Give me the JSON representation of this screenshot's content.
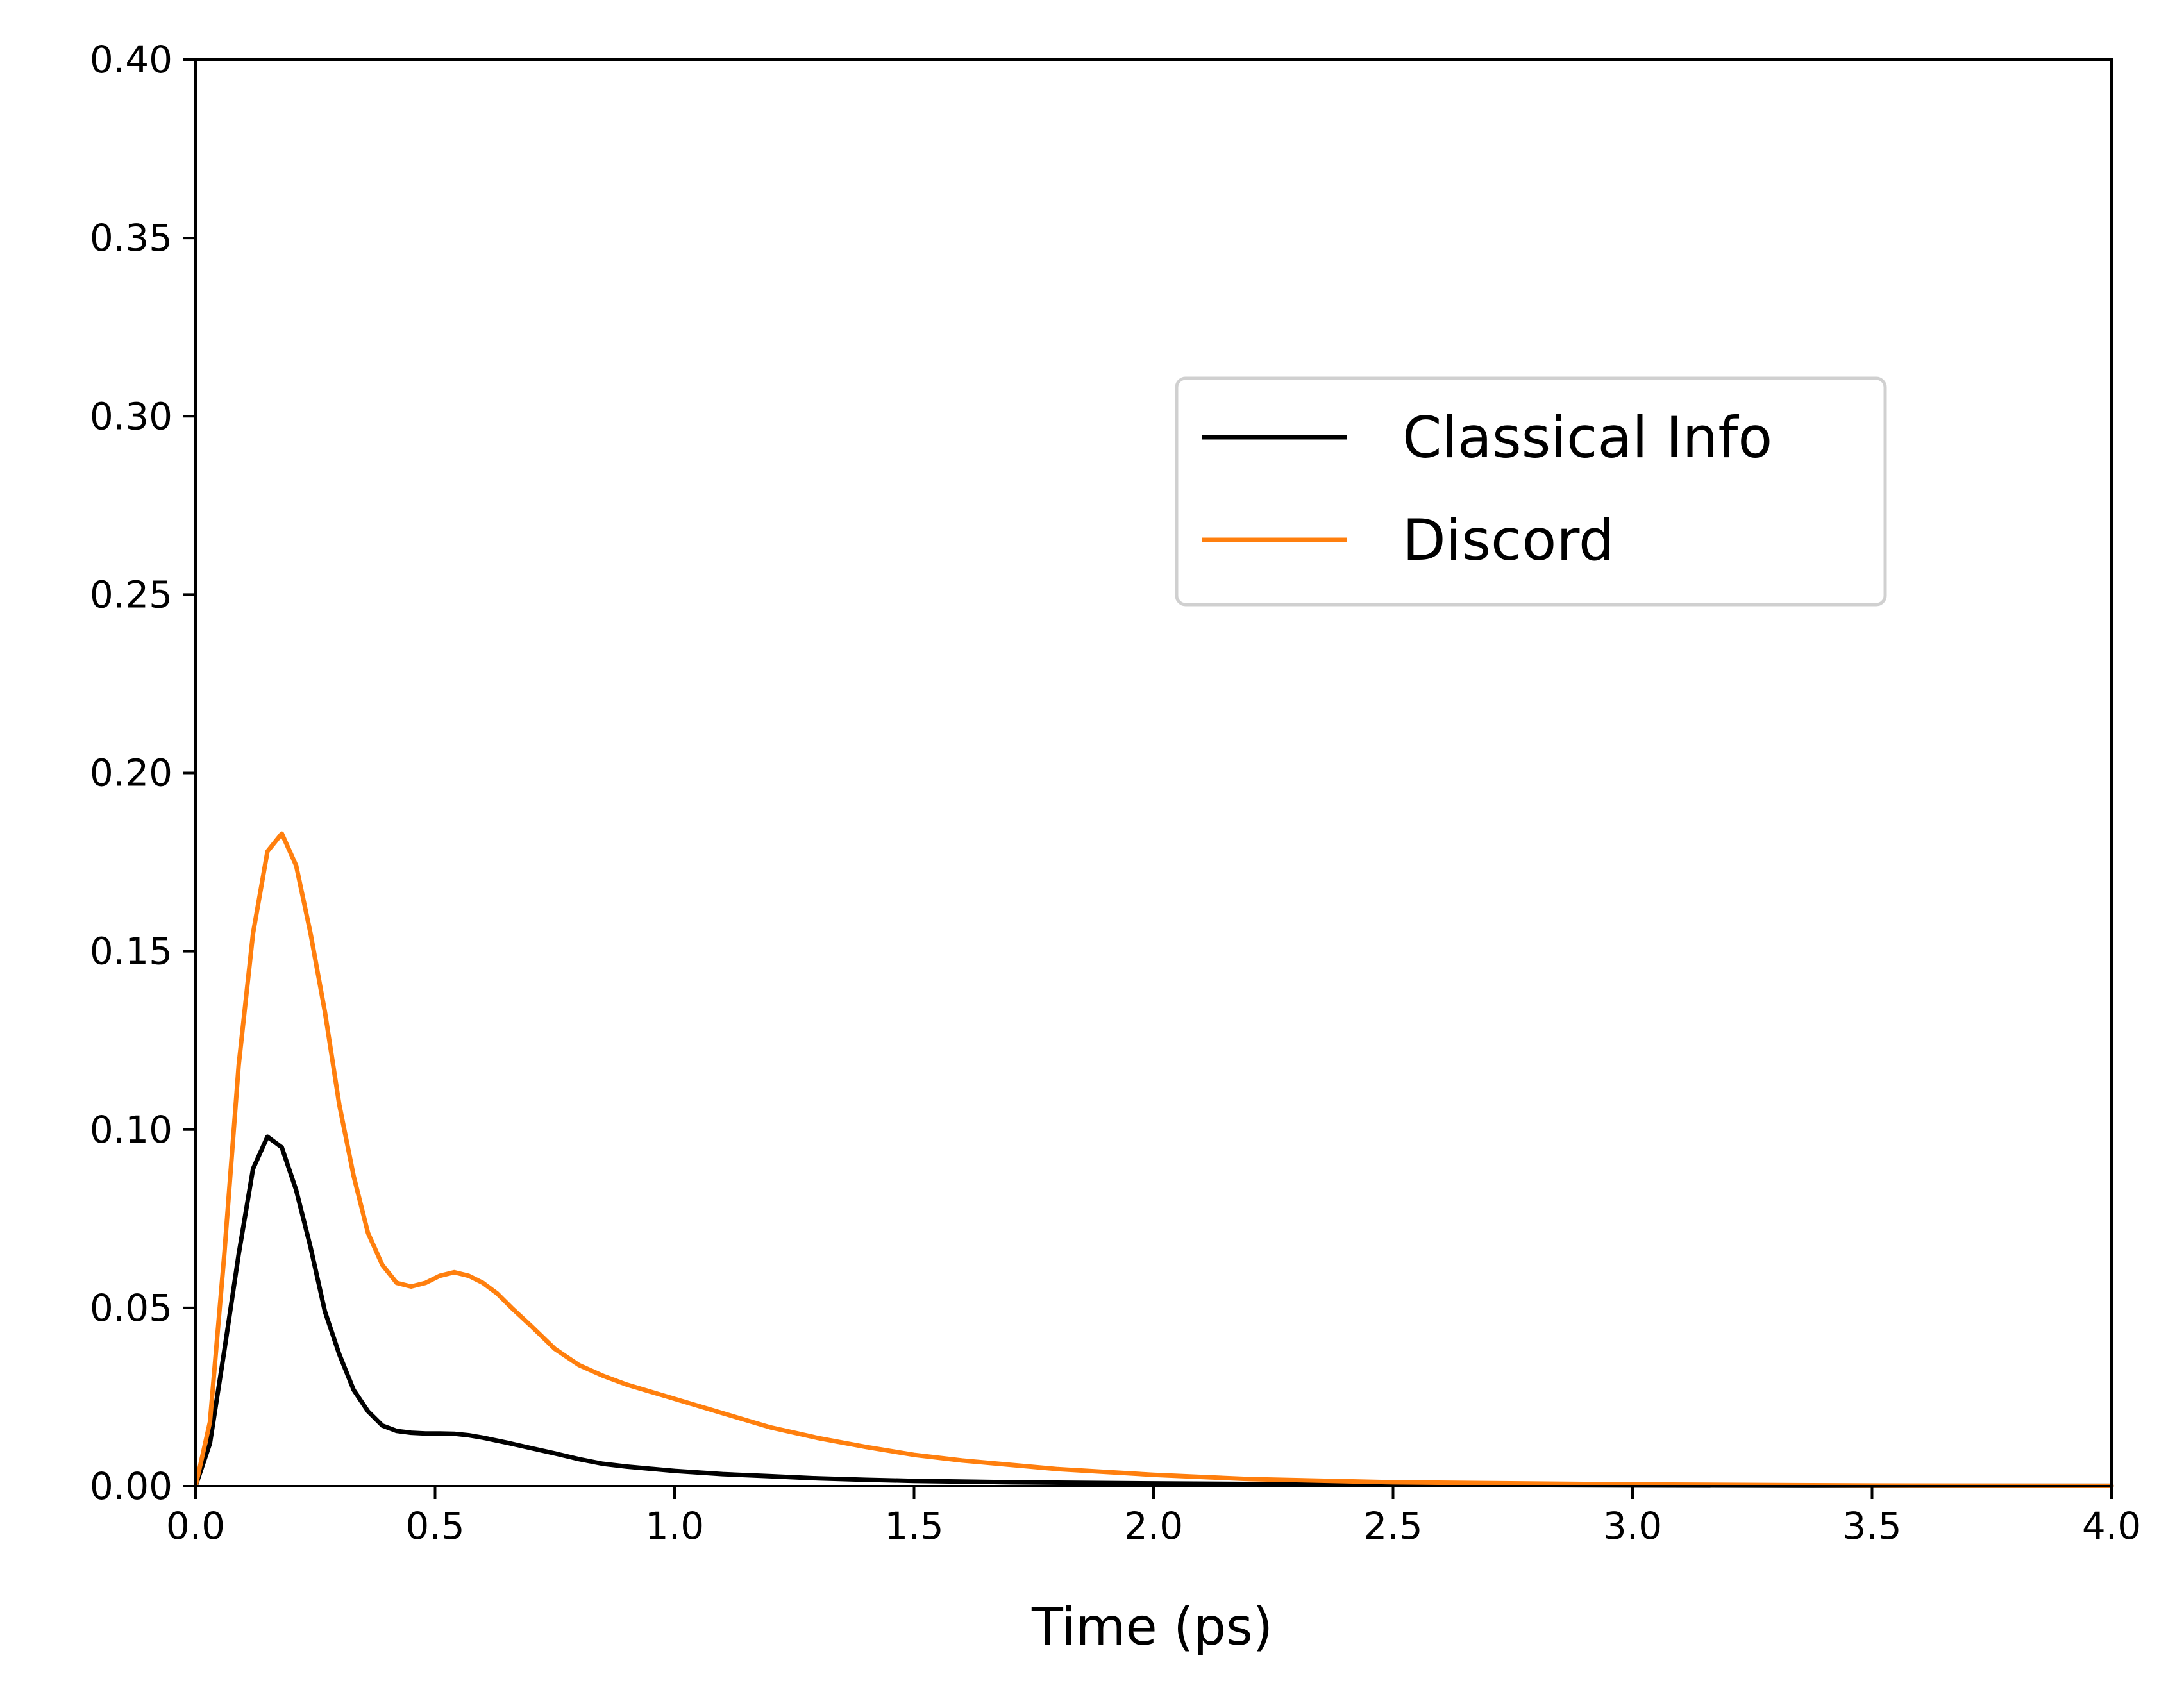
{
  "chart_data": {
    "type": "line",
    "title": "",
    "xlabel": "Time (ps)",
    "ylabel": "",
    "xlim": [
      0.0,
      4.0
    ],
    "ylim": [
      0.0,
      0.4
    ],
    "xticks": [
      "0.0",
      "0.5",
      "1.0",
      "1.5",
      "2.0",
      "2.5",
      "3.0",
      "3.5",
      "4.0"
    ],
    "yticks": [
      "0.00",
      "0.05",
      "0.10",
      "0.15",
      "0.20",
      "0.25",
      "0.30",
      "0.35",
      "0.40"
    ],
    "grid": false,
    "legend": {
      "placement": "upper-right-center",
      "entries": [
        "Classical Info",
        "Discord"
      ]
    },
    "series": [
      {
        "name": "Classical Info",
        "color": "#000000",
        "x": [
          0.0,
          0.03,
          0.06,
          0.09,
          0.12,
          0.15,
          0.18,
          0.21,
          0.24,
          0.27,
          0.3,
          0.33,
          0.36,
          0.39,
          0.42,
          0.45,
          0.48,
          0.51,
          0.54,
          0.57,
          0.6,
          0.65,
          0.7,
          0.75,
          0.8,
          0.85,
          0.9,
          1.0,
          1.1,
          1.2,
          1.3,
          1.4,
          1.5,
          1.7,
          2.0,
          2.5,
          3.0,
          3.5,
          4.0
        ],
        "y": [
          0.0,
          0.012,
          0.038,
          0.065,
          0.089,
          0.098,
          0.095,
          0.083,
          0.067,
          0.049,
          0.037,
          0.027,
          0.021,
          0.017,
          0.0155,
          0.015,
          0.0148,
          0.0148,
          0.0147,
          0.0143,
          0.0136,
          0.0122,
          0.0107,
          0.0092,
          0.0076,
          0.0063,
          0.0055,
          0.0043,
          0.0034,
          0.0028,
          0.0022,
          0.0018,
          0.0015,
          0.0011,
          0.0008,
          0.0004,
          0.0002,
          0.0001,
          0.0001
        ]
      },
      {
        "name": "Discord",
        "color": "#ff7f0e",
        "x": [
          0.0,
          0.03,
          0.06,
          0.09,
          0.12,
          0.15,
          0.18,
          0.21,
          0.24,
          0.27,
          0.3,
          0.33,
          0.36,
          0.39,
          0.42,
          0.45,
          0.48,
          0.51,
          0.54,
          0.57,
          0.6,
          0.63,
          0.66,
          0.7,
          0.75,
          0.8,
          0.85,
          0.9,
          1.0,
          1.1,
          1.2,
          1.3,
          1.4,
          1.5,
          1.6,
          1.8,
          2.0,
          2.2,
          2.5,
          3.0,
          3.5,
          4.0
        ],
        "y": [
          0.0,
          0.018,
          0.065,
          0.118,
          0.155,
          0.178,
          0.183,
          0.174,
          0.155,
          0.133,
          0.107,
          0.087,
          0.071,
          0.062,
          0.057,
          0.056,
          0.057,
          0.059,
          0.06,
          0.059,
          0.057,
          0.054,
          0.05,
          0.045,
          0.0385,
          0.034,
          0.031,
          0.0285,
          0.0245,
          0.0205,
          0.0165,
          0.0135,
          0.011,
          0.0088,
          0.0072,
          0.0048,
          0.0032,
          0.002,
          0.0011,
          0.0005,
          0.0002,
          0.0001
        ]
      }
    ]
  }
}
